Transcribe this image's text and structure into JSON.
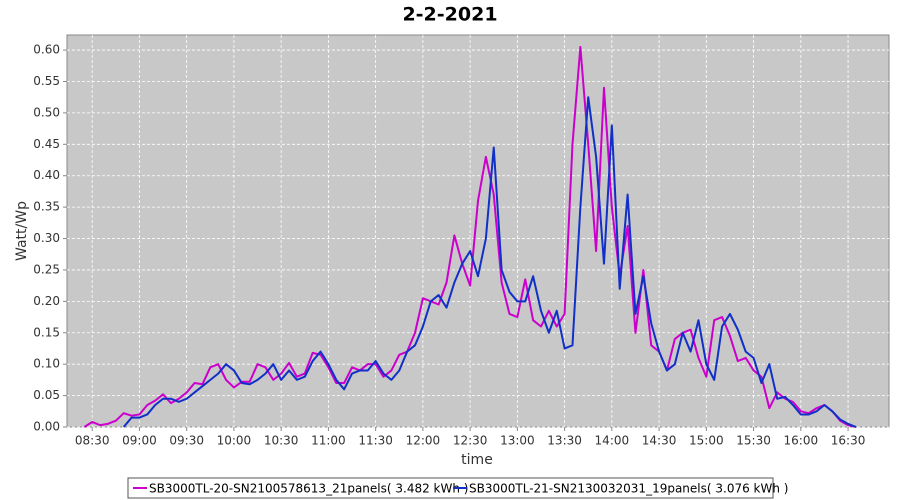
{
  "chart_data": {
    "type": "line",
    "title": "2-2-2021",
    "x_label": "time",
    "y_label": "Watt/Wp",
    "x": [
      "08:25",
      "08:30",
      "08:35",
      "08:40",
      "08:45",
      "08:50",
      "08:55",
      "09:00",
      "09:05",
      "09:10",
      "09:15",
      "09:20",
      "09:25",
      "09:30",
      "09:35",
      "09:40",
      "09:45",
      "09:50",
      "09:55",
      "10:00",
      "10:05",
      "10:10",
      "10:15",
      "10:20",
      "10:25",
      "10:30",
      "10:35",
      "10:40",
      "10:45",
      "10:50",
      "10:55",
      "11:00",
      "11:05",
      "11:10",
      "11:15",
      "11:20",
      "11:25",
      "11:30",
      "11:35",
      "11:40",
      "11:45",
      "11:50",
      "11:55",
      "12:00",
      "12:05",
      "12:10",
      "12:15",
      "12:20",
      "12:25",
      "12:30",
      "12:35",
      "12:40",
      "12:45",
      "12:50",
      "12:55",
      "13:00",
      "13:05",
      "13:10",
      "13:15",
      "13:20",
      "13:25",
      "13:30",
      "13:35",
      "13:40",
      "13:45",
      "13:50",
      "13:55",
      "14:00",
      "14:05",
      "14:10",
      "14:15",
      "14:20",
      "14:25",
      "14:30",
      "14:35",
      "14:40",
      "14:45",
      "14:50",
      "14:55",
      "15:00",
      "15:05",
      "15:10",
      "15:15",
      "15:20",
      "15:25",
      "15:30",
      "15:35",
      "15:40",
      "15:45",
      "15:50",
      "15:55",
      "16:00",
      "16:05",
      "16:10",
      "16:15",
      "16:20",
      "16:25",
      "16:30",
      "16:35"
    ],
    "series": [
      {
        "name": "SB3000TL-20-SN2100578613_21panels( 3.482 kWh )",
        "color": "#cc00cc",
        "values": [
          0.0,
          0.008,
          0.003,
          0.005,
          0.01,
          0.022,
          0.018,
          0.02,
          0.035,
          0.042,
          0.052,
          0.038,
          0.045,
          0.055,
          0.07,
          0.068,
          0.095,
          0.1,
          0.075,
          0.063,
          0.072,
          0.072,
          0.1,
          0.095,
          0.075,
          0.085,
          0.102,
          0.08,
          0.085,
          0.118,
          0.115,
          0.095,
          0.07,
          0.07,
          0.095,
          0.09,
          0.1,
          0.1,
          0.08,
          0.09,
          0.115,
          0.12,
          0.15,
          0.205,
          0.2,
          0.195,
          0.23,
          0.305,
          0.26,
          0.225,
          0.36,
          0.43,
          0.37,
          0.23,
          0.18,
          0.175,
          0.235,
          0.17,
          0.16,
          0.185,
          0.16,
          0.18,
          0.45,
          0.605,
          0.45,
          0.28,
          0.54,
          0.35,
          0.24,
          0.32,
          0.15,
          0.25,
          0.13,
          0.12,
          0.09,
          0.14,
          0.15,
          0.155,
          0.11,
          0.08,
          0.17,
          0.175,
          0.145,
          0.105,
          0.11,
          0.09,
          0.08,
          0.03,
          0.055,
          0.045,
          0.04,
          0.025,
          0.022,
          0.03,
          0.035,
          0.025,
          0.01,
          0.003,
          0.0
        ]
      },
      {
        "name": "SB3000TL-21-SN2130032031_19panels( 3.076 kWh )",
        "color": "#1030c8",
        "values": [
          null,
          null,
          null,
          null,
          null,
          0.0,
          0.015,
          0.015,
          0.02,
          0.035,
          0.045,
          0.045,
          0.04,
          0.045,
          0.055,
          0.065,
          0.075,
          0.085,
          0.1,
          0.09,
          0.07,
          0.068,
          0.075,
          0.085,
          0.1,
          0.075,
          0.09,
          0.075,
          0.08,
          0.105,
          0.12,
          0.1,
          0.075,
          0.06,
          0.085,
          0.09,
          0.09,
          0.105,
          0.085,
          0.075,
          0.09,
          0.12,
          0.13,
          0.16,
          0.2,
          0.21,
          0.19,
          0.23,
          0.26,
          0.28,
          0.24,
          0.3,
          0.445,
          0.25,
          0.215,
          0.2,
          0.2,
          0.24,
          0.185,
          0.15,
          0.185,
          0.125,
          0.13,
          0.35,
          0.525,
          0.43,
          0.26,
          0.48,
          0.22,
          0.37,
          0.18,
          0.24,
          0.165,
          0.12,
          0.09,
          0.1,
          0.15,
          0.12,
          0.17,
          0.1,
          0.075,
          0.16,
          0.18,
          0.155,
          0.12,
          0.11,
          0.07,
          0.1,
          0.045,
          0.048,
          0.035,
          0.02,
          0.02,
          0.025,
          0.035,
          0.025,
          0.012,
          0.005,
          0.0
        ]
      }
    ],
    "xlim": [
      "08:14",
      "16:56"
    ],
    "xticks": [
      "08:30",
      "09:00",
      "09:30",
      "10:00",
      "10:30",
      "11:00",
      "11:30",
      "12:00",
      "12:30",
      "13:00",
      "13:30",
      "14:00",
      "14:30",
      "15:00",
      "15:30",
      "16:00",
      "16:30"
    ],
    "ylim": [
      0,
      0.624
    ],
    "yticks": [
      {
        "value": 0,
        "label": "0.00"
      },
      {
        "value": 0.05,
        "label": "0.05"
      },
      {
        "value": 0.1,
        "label": "0.10"
      },
      {
        "value": 0.15,
        "label": "0.15"
      },
      {
        "value": 0.2,
        "label": "0.20"
      },
      {
        "value": 0.25,
        "label": "0.25"
      },
      {
        "value": 0.3,
        "label": "0.30"
      },
      {
        "value": 0.35,
        "label": "0.35"
      },
      {
        "value": 0.4,
        "label": "0.40"
      },
      {
        "value": 0.45,
        "label": "0.45"
      },
      {
        "value": 0.5,
        "label": "0.50"
      },
      {
        "value": 0.55,
        "label": "0.55"
      },
      {
        "value": 0.6,
        "label": "0.60"
      }
    ],
    "grid": true
  }
}
